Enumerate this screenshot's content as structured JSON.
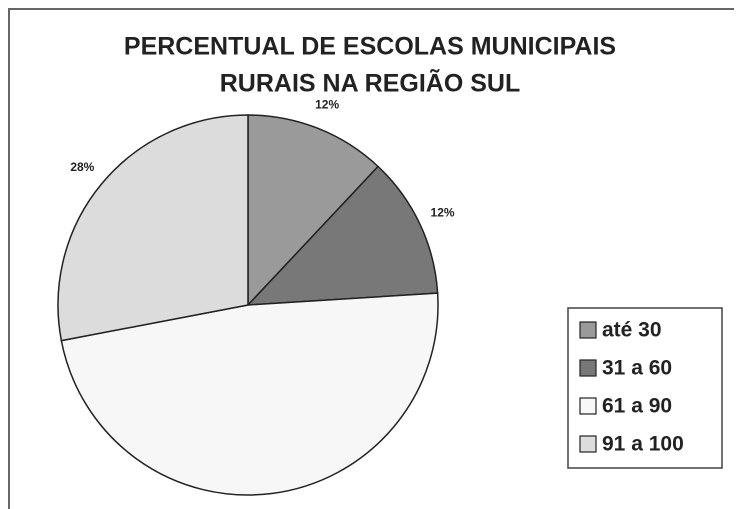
{
  "chart_data": {
    "type": "pie",
    "title": [
      "PERCENTUAL DE ESCOLAS MUNICIPAIS",
      "RURAIS NA REGIÃO SUL"
    ],
    "categories": [
      "até 30",
      "31 a 60",
      "61 a 90",
      "91 a 100"
    ],
    "values": [
      12,
      12,
      48,
      28
    ],
    "value_labels": [
      "12%",
      "12%",
      null,
      "28%"
    ],
    "colors": [
      "#9a9a9a",
      "#787878",
      "#f7f7f7",
      "#dcdcdc"
    ]
  }
}
